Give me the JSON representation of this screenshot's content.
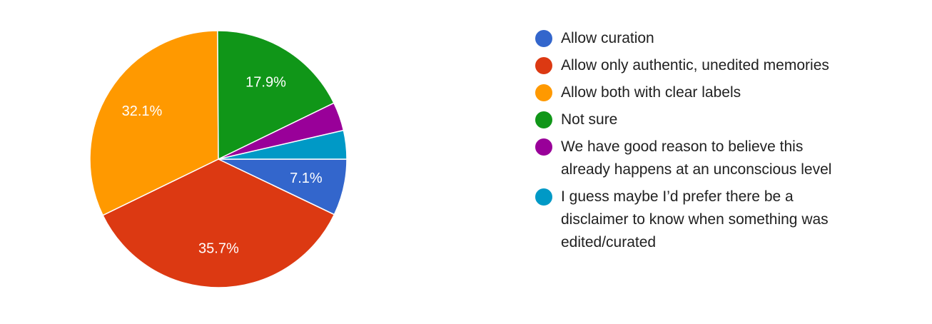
{
  "chart_data": {
    "type": "pie",
    "categories": [
      "Allow curation",
      "Allow only authentic, unedited memories",
      "Allow both with clear labels",
      "Not sure",
      "We have good reason to believe this already happens at an unconscious level",
      "I guess maybe I’d prefer there be a disclaimer to know when something was edited/curated"
    ],
    "values": [
      7.1,
      35.7,
      32.1,
      17.9,
      3.6,
      3.6
    ],
    "value_labels": [
      "7.1%",
      "35.7%",
      "32.1%",
      "17.9%",
      null,
      null
    ],
    "colors": [
      "#3366cc",
      "#dc3912",
      "#ff9900",
      "#109618",
      "#990099",
      "#0099c6"
    ],
    "legend": "right"
  }
}
